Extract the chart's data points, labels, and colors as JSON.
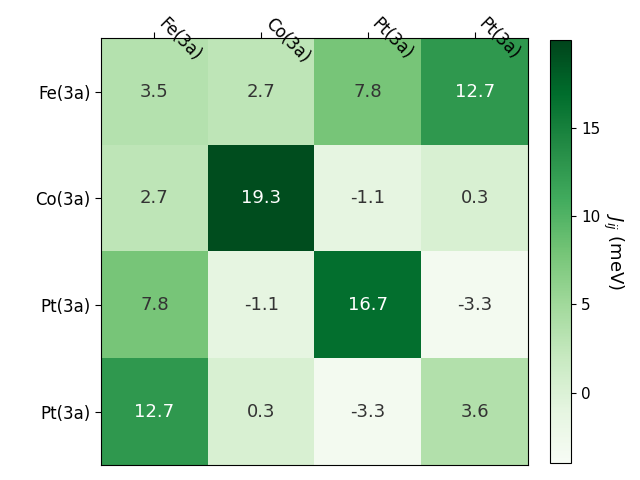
{
  "matrix": [
    [
      3.5,
      2.7,
      7.8,
      12.7
    ],
    [
      2.7,
      19.3,
      -1.1,
      0.3
    ],
    [
      7.8,
      -1.1,
      16.7,
      -3.3
    ],
    [
      12.7,
      0.3,
      -3.3,
      3.6
    ]
  ],
  "row_labels": [
    "Fe(3a)",
    "Co(3a)",
    "Pt(3a)",
    "Pt(3a)"
  ],
  "col_labels": [
    "Fe(3a)",
    "Co(3a)",
    "Pt(3a)",
    "Pt(3a)"
  ],
  "colorbar_label": "$J_{ij}$ (meV)",
  "cmap": "Greens",
  "vmin": -4,
  "vmax": 20,
  "background_color": "#ffffff",
  "fontsize_labels": 12,
  "fontsize_values": 13,
  "colorbar_ticks": [
    0,
    5,
    10,
    15
  ],
  "figsize": [
    6.4,
    4.8
  ],
  "dpi": 100
}
